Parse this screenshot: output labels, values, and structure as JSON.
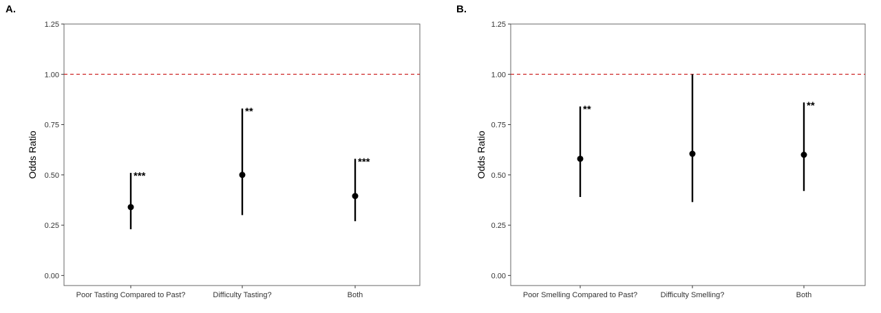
{
  "chart_data": [
    {
      "type": "scatter",
      "panel": "A.",
      "ylabel": "Odds Ratio",
      "xlabel": "",
      "ylim": [
        -0.05,
        1.25
      ],
      "yticks": [
        "0.00",
        "0.25",
        "0.50",
        "0.75",
        "1.00",
        "1.25"
      ],
      "yticks_values": [
        0,
        0.25,
        0.5,
        0.75,
        1.0,
        1.25
      ],
      "reference_line": {
        "value": 1.0,
        "color": "#cc2222",
        "style": "dashed"
      },
      "grid": false,
      "categories": [
        "Poor Tasting Compared to Past?",
        "Difficulty Tasting?",
        "Both"
      ],
      "points": [
        {
          "x": "Poor Tasting Compared to Past?",
          "estimate": 0.34,
          "lower": 0.23,
          "upper": 0.51,
          "significance": "***"
        },
        {
          "x": "Difficulty Tasting?",
          "estimate": 0.5,
          "lower": 0.3,
          "upper": 0.83,
          "significance": "**"
        },
        {
          "x": "Both",
          "estimate": 0.395,
          "lower": 0.27,
          "upper": 0.58,
          "significance": "***"
        }
      ]
    },
    {
      "type": "scatter",
      "panel": "B.",
      "ylabel": "Odds Ratio",
      "xlabel": "",
      "ylim": [
        -0.05,
        1.25
      ],
      "yticks": [
        "0.00",
        "0.25",
        "0.50",
        "0.75",
        "1.00",
        "1.25"
      ],
      "yticks_values": [
        0,
        0.25,
        0.5,
        0.75,
        1.0,
        1.25
      ],
      "reference_line": {
        "value": 1.0,
        "color": "#cc2222",
        "style": "dashed"
      },
      "grid": false,
      "categories": [
        "Poor Smelling Compared to Past?",
        "Difficulty Smelling?",
        "Both"
      ],
      "points": [
        {
          "x": "Poor Smelling Compared to Past?",
          "estimate": 0.58,
          "lower": 0.39,
          "upper": 0.84,
          "significance": "**"
        },
        {
          "x": "Difficulty Smelling?",
          "estimate": 0.605,
          "lower": 0.365,
          "upper": 1.0,
          "significance": ""
        },
        {
          "x": "Both",
          "estimate": 0.6,
          "lower": 0.42,
          "upper": 0.86,
          "significance": "**"
        }
      ]
    }
  ]
}
